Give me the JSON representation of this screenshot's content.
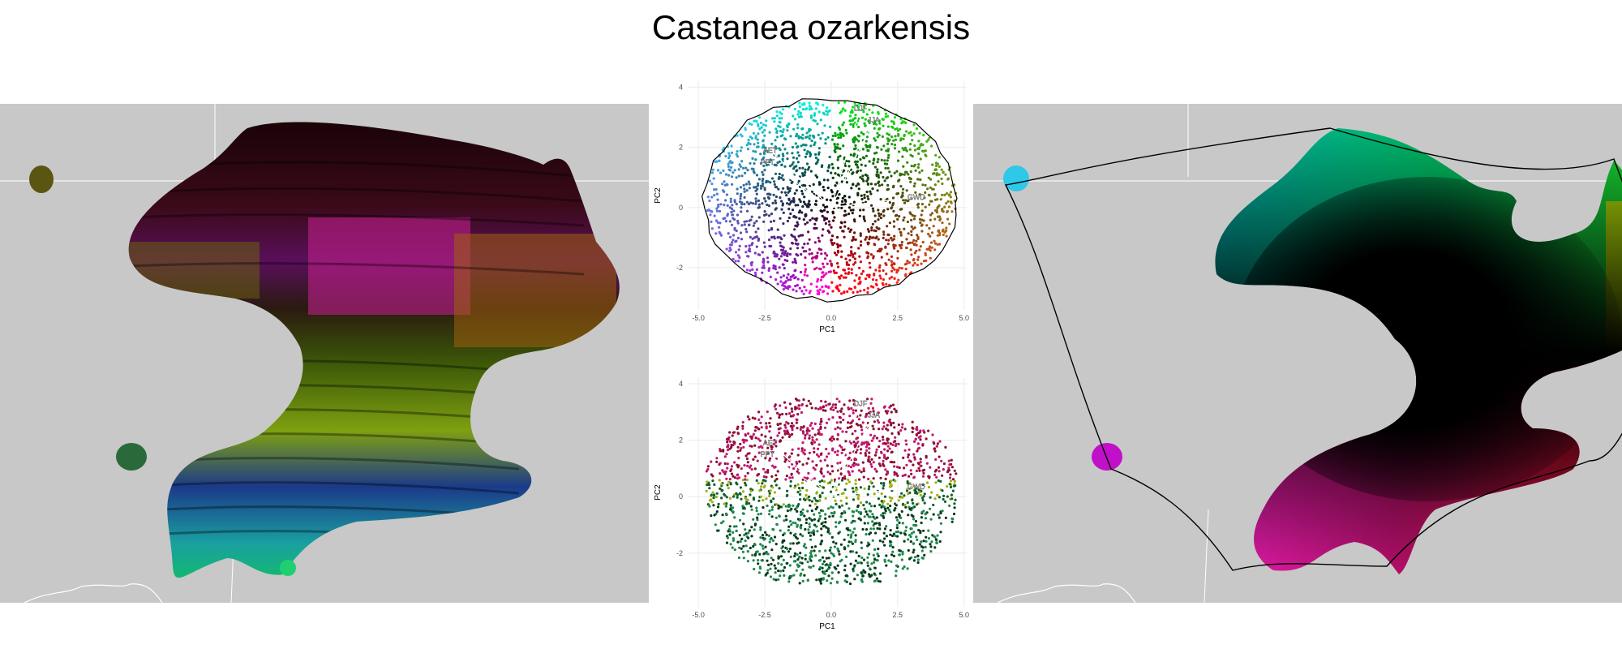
{
  "title": "Castanea ozarkensis",
  "colors": {
    "background": "#c8c8c8",
    "land_border": "#ffffff",
    "hull": "#000000"
  },
  "chart_data": [
    {
      "type": "scatter",
      "name": "biplot-colored-by-pc-space",
      "xlabel": "PC1",
      "ylabel": "PC2",
      "xlim": [
        -5.4,
        5.1
      ],
      "ylim": [
        -3.4,
        4.2
      ],
      "xticks": [
        "-5.0",
        "-2.5",
        "0.0",
        "2.5",
        "5.0"
      ],
      "yticks": [
        "-2",
        "0",
        "2",
        "4"
      ],
      "grid": true,
      "hull": true,
      "vectors": [
        {
          "label": "DJF",
          "x": 1.1,
          "y": 3.3
        },
        {
          "label": "JJA",
          "x": 1.6,
          "y": 2.9
        },
        {
          "label": "AET",
          "x": -2.3,
          "y": 1.9
        },
        {
          "label": "PPT",
          "x": -2.4,
          "y": 1.5
        },
        {
          "label": "GWD",
          "x": 3.2,
          "y": 0.35
        }
      ]
    },
    {
      "type": "scatter",
      "name": "biplot-colored-by-geography",
      "xlabel": "PC1",
      "ylabel": "PC2",
      "xlim": [
        -5.4,
        5.1
      ],
      "ylim": [
        -3.9,
        4.2
      ],
      "xticks": [
        "-5.0",
        "-2.5",
        "0.0",
        "2.5",
        "5.0"
      ],
      "yticks": [
        "-2",
        "0",
        "2",
        "4"
      ],
      "grid": true,
      "hull": false,
      "vectors": [
        {
          "label": "DJF",
          "x": 1.1,
          "y": 3.3
        },
        {
          "label": "JJA",
          "x": 1.6,
          "y": 2.9
        },
        {
          "label": "AET",
          "x": -2.3,
          "y": 1.9
        },
        {
          "label": "PPT",
          "x": -2.4,
          "y": 1.5
        },
        {
          "label": "GWD",
          "x": 3.2,
          "y": 0.35
        }
      ]
    }
  ]
}
